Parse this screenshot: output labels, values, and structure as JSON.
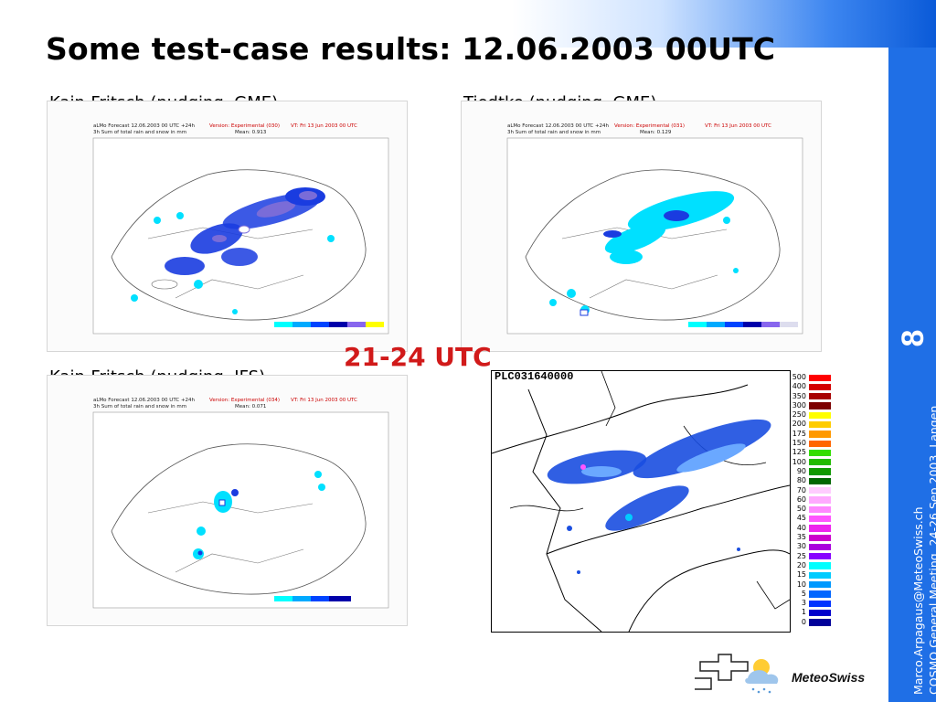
{
  "slide": {
    "title": "Some test-case results: 12.06.2003 00UTC",
    "page_number": "8",
    "side_text_line1": "Marco.Arpagaus@MeteoSwiss.ch",
    "side_text_line2": "COSMO General Meeting, 24-26 Sep 2003, Langen",
    "utc_label": "21-24 UTC",
    "logo_text": "MeteoSwiss",
    "colors": {
      "title": "#000000",
      "utc_label": "#d11a1a",
      "accent_blue": "#1f6fe6"
    }
  },
  "panels": [
    {
      "label": "Kain-Fritsch (nudging, GME)",
      "header_left_1": "aLMo Forecast 12.06.2003 00 UTC +24h",
      "header_left_2": "3h Sum of total rain and snow in mm",
      "header_version": "Version: Experimental (030)",
      "header_vt": "VT: Fri 13 Jun 2003 00 UTC",
      "header_mean": "Mean: 0.913"
    },
    {
      "label": "Tiedtke (nudging, GME)",
      "header_left_1": "aLMo Forecast 12.06.2003 00 UTC +24h",
      "header_left_2": "3h Sum of total rain and snow in mm",
      "header_version": "Version: Experimental (031)",
      "header_vt": "VT: Fri 13 Jun 2003 00 UTC",
      "header_mean": "Mean: 0.129"
    },
    {
      "label": "Kain-Fritsch (nudging, IFS)",
      "header_left_1": "aLMo Forecast 12.06.2003 00 UTC +24h",
      "header_left_2": "3h Sum of total rain and snow in mm",
      "header_version": "Version: Experimental (034)",
      "header_vt": "VT: Fri 13 Jun 2003 00 UTC",
      "header_mean": "Mean: 0.071"
    }
  ],
  "radar": {
    "id_label": "PLC031640000",
    "legend": [
      {
        "label": "500",
        "color": "#ff0000"
      },
      {
        "label": "400",
        "color": "#d40000"
      },
      {
        "label": "350",
        "color": "#a80000"
      },
      {
        "label": "300",
        "color": "#7c0000"
      },
      {
        "label": "250",
        "color": "#ffff00"
      },
      {
        "label": "200",
        "color": "#ffcc00"
      },
      {
        "label": "175",
        "color": "#ff9900"
      },
      {
        "label": "150",
        "color": "#ff6600"
      },
      {
        "label": "125",
        "color": "#33dd00"
      },
      {
        "label": "100",
        "color": "#22bb00"
      },
      {
        "label": "90",
        "color": "#119900"
      },
      {
        "label": "80",
        "color": "#006600"
      },
      {
        "label": "70",
        "color": "#ffccff"
      },
      {
        "label": "60",
        "color": "#ffaaff"
      },
      {
        "label": "50",
        "color": "#ff88ff"
      },
      {
        "label": "45",
        "color": "#ff55ff"
      },
      {
        "label": "40",
        "color": "#ee22ee"
      },
      {
        "label": "35",
        "color": "#cc00cc"
      },
      {
        "label": "30",
        "color": "#aa00dd"
      },
      {
        "label": "25",
        "color": "#8800ff"
      },
      {
        "label": "20",
        "color": "#00ffff"
      },
      {
        "label": "15",
        "color": "#00ccff"
      },
      {
        "label": "10",
        "color": "#0099ff"
      },
      {
        "label": "5",
        "color": "#0066ff"
      },
      {
        "label": "3",
        "color": "#0033ff"
      },
      {
        "label": "1",
        "color": "#0000cc"
      },
      {
        "label": "0",
        "color": "#000099"
      }
    ]
  }
}
